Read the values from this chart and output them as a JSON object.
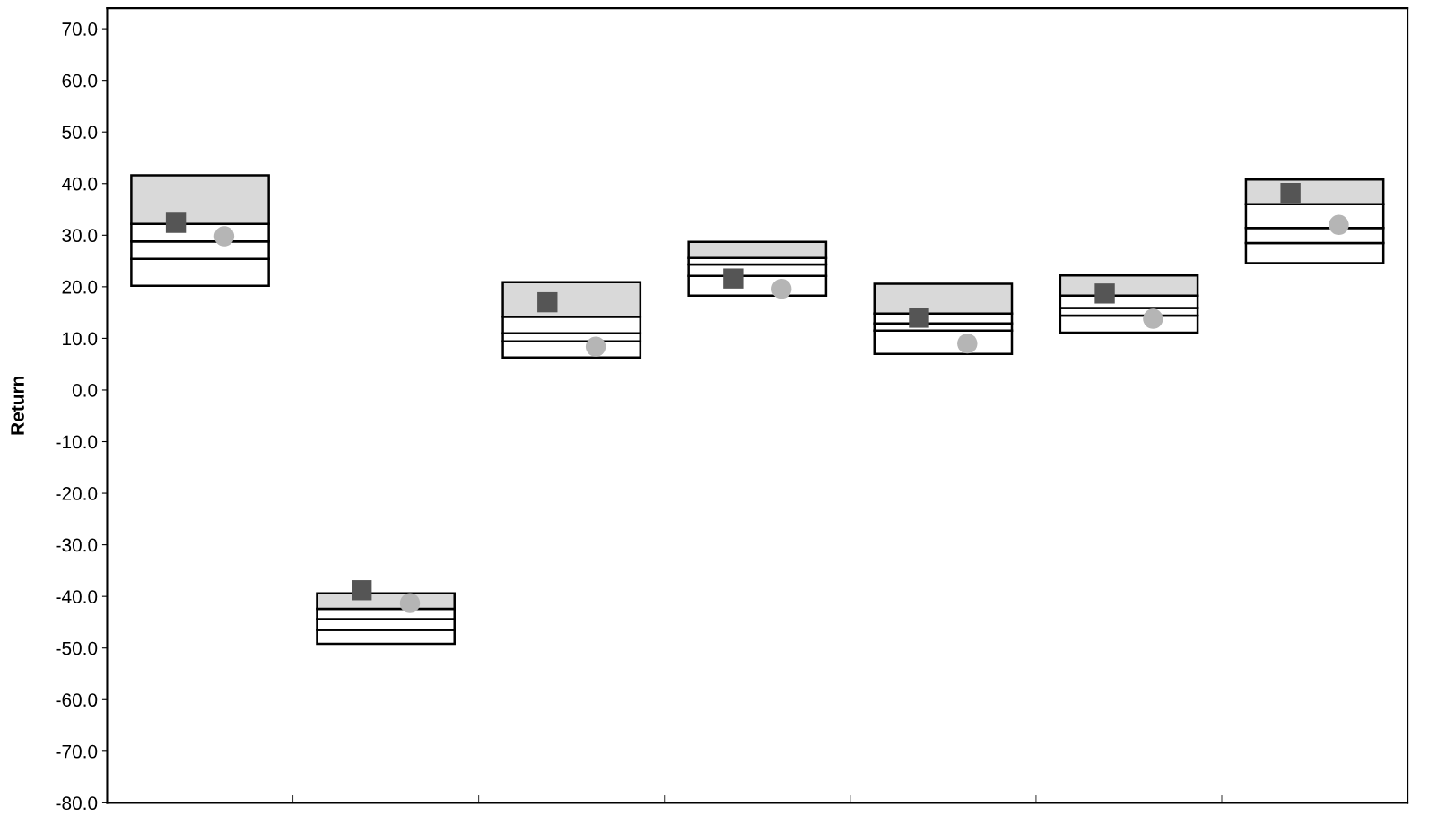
{
  "chart_data": {
    "type": "bar",
    "ylabel": "Return",
    "categories": [
      null,
      null,
      null,
      null,
      null,
      null,
      null
    ],
    "series": [
      {
        "color": "#ffffff",
        "base": [
          20.2,
          -49.2,
          6.3,
          18.3,
          7.0,
          11.1,
          24.6
        ],
        "values": [
          5.2,
          2.7,
          3.1,
          3.8,
          4.5,
          3.3,
          3.9
        ]
      },
      {
        "color": "#ffffff",
        "base": [
          25.4,
          -46.5,
          9.4,
          22.1,
          11.5,
          14.4,
          28.5
        ],
        "values": [
          3.4,
          2.1,
          1.6,
          2.2,
          1.4,
          1.5,
          2.9
        ]
      },
      {
        "color": "#ffffff",
        "base": [
          28.8,
          -44.4,
          11.0,
          24.3,
          12.9,
          15.9,
          31.4
        ],
        "values": [
          3.4,
          2.0,
          3.2,
          1.3,
          1.9,
          2.4,
          4.6
        ]
      },
      {
        "color": "#d9d9d9",
        "base": [
          32.2,
          -42.4,
          14.2,
          25.6,
          14.8,
          18.3,
          36.0
        ],
        "values": [
          9.4,
          3.0,
          6.7,
          3.1,
          5.8,
          3.9,
          4.8
        ]
      },
      {
        "type": "scatter",
        "marker": "square",
        "color": "#555555",
        "values": [
          32.4,
          -38.8,
          17.0,
          21.6,
          14.0,
          18.7,
          38.2
        ]
      },
      {
        "type": "scatter",
        "marker": "circle",
        "color": "#b5b5b5",
        "values": [
          29.8,
          -41.3,
          8.4,
          19.6,
          9.0,
          13.8,
          32.0
        ]
      }
    ],
    "ylim": [
      -80,
      74
    ],
    "yticks": [
      {
        "value": -80,
        "label": "-80.0"
      },
      {
        "value": -70,
        "label": "-70.0"
      },
      {
        "value": -60,
        "label": "-60.0"
      },
      {
        "value": -50,
        "label": "-50.0"
      },
      {
        "value": -40,
        "label": "-40.0"
      },
      {
        "value": -30,
        "label": "-30.0"
      },
      {
        "value": -20,
        "label": "-20.0"
      },
      {
        "value": -10,
        "label": "-10.0"
      },
      {
        "value": 0,
        "label": "0.0"
      },
      {
        "value": 10,
        "label": "10.0"
      },
      {
        "value": 20,
        "label": "20.0"
      },
      {
        "value": 30,
        "label": "30.0"
      },
      {
        "value": 40,
        "label": "40.0"
      },
      {
        "value": 50,
        "label": "50.0"
      },
      {
        "value": 60,
        "label": "60.0"
      },
      {
        "value": 70,
        "label": "70.0"
      }
    ]
  }
}
